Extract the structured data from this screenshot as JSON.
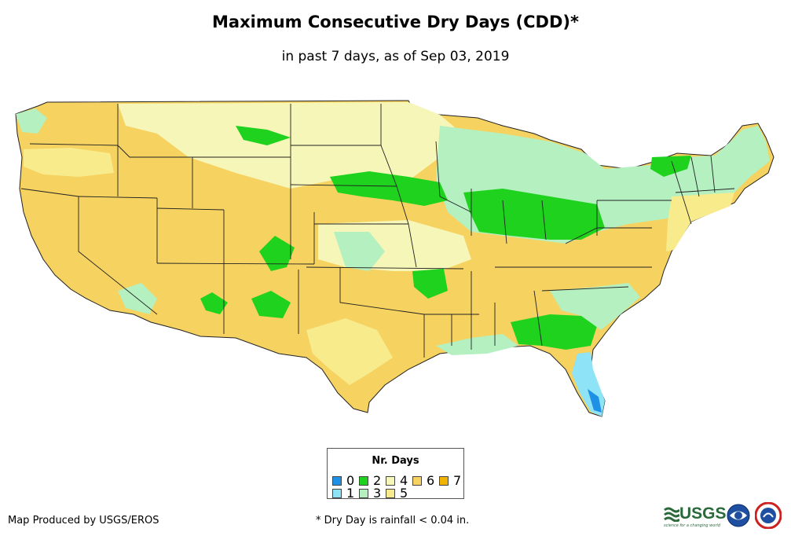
{
  "title": "Maximum Consecutive Dry Days (CDD)*",
  "subtitle": "in past 7 days, as of Sep 03, 2019",
  "legend": {
    "title": "Nr. Days",
    "items": [
      {
        "label": "0",
        "color": "#1e90e6"
      },
      {
        "label": "1",
        "color": "#8ee3f7"
      },
      {
        "label": "2",
        "color": "#1ed21e"
      },
      {
        "label": "3",
        "color": "#b4f0c0"
      },
      {
        "label": "4",
        "color": "#f6f6b8"
      },
      {
        "label": "5",
        "color": "#f8eb8c"
      },
      {
        "label": "6",
        "color": "#f6d260"
      },
      {
        "label": "7",
        "color": "#f0b400"
      }
    ]
  },
  "credit": "Map Produced by USGS/EROS",
  "footnote": "* Dry Day is rainfall < 0.04 in.",
  "logos": {
    "usgs": "USGS",
    "usgs_tagline": "science for a changing world"
  }
}
